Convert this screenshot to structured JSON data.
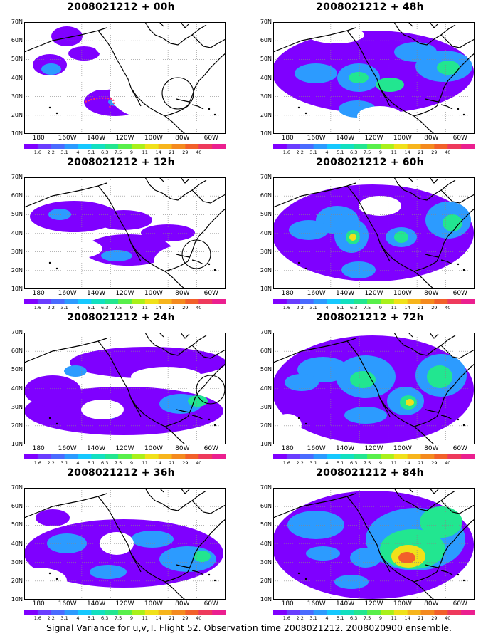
{
  "caption": "Signal Variance for u,v,T. Flight 52. Observation time 2008021212. 2008020900 ensemble.",
  "panels": [
    {
      "title": "2008021212 + 00h"
    },
    {
      "title": "2008021212 + 12h"
    },
    {
      "title": "2008021212 + 24h"
    },
    {
      "title": "2008021212 + 36h"
    },
    {
      "title": "2008021212 + 48h"
    },
    {
      "title": "2008021212 + 60h"
    },
    {
      "title": "2008021212 + 72h"
    },
    {
      "title": "2008021212 + 84h"
    }
  ],
  "lat_labels": [
    "70N",
    "60N",
    "50N",
    "40N",
    "30N",
    "20N",
    "10N"
  ],
  "lon_labels": [
    "180",
    "160W",
    "140W",
    "120W",
    "100W",
    "80W",
    "60W"
  ],
  "colorbar": {
    "labels": [
      "1.6",
      "2.2",
      "3.1",
      "4",
      "5.1",
      "6.3",
      "7.5",
      "9",
      "11",
      "14",
      "21",
      "29",
      "40"
    ],
    "colors": [
      "#7f00ff",
      "#6a3dff",
      "#4a6bff",
      "#2c9bff",
      "#15c8ff",
      "#12e0c0",
      "#22e690",
      "#58ef4a",
      "#a9f01a",
      "#f0e11a",
      "#f7b51c",
      "#f48a1e",
      "#f2602a",
      "#ee3a5c",
      "#eb1f8f"
    ]
  }
}
